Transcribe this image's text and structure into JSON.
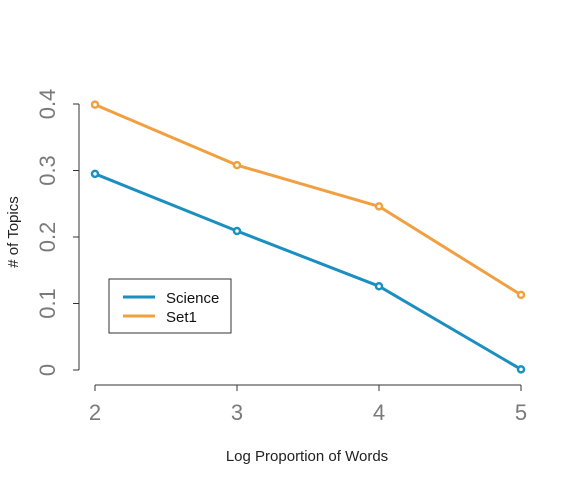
{
  "chart_data": {
    "type": "line",
    "title": "",
    "xlabel": "Log Proportion of Words",
    "ylabel": "# of Topics",
    "x": [
      2,
      3,
      4,
      5
    ],
    "xlim": [
      2,
      5
    ],
    "ylim": [
      0,
      0.4
    ],
    "x_ticks": [
      "2",
      "3",
      "4",
      "5"
    ],
    "y_ticks": [
      "0",
      "0.1",
      "0.2",
      "0.3",
      "0.4"
    ],
    "grid": false,
    "legend_position": "bottom-left",
    "series": [
      {
        "name": "Science",
        "values": [
          0.295,
          0.209,
          0.126,
          0.001
        ],
        "color": "#1a8fc0"
      },
      {
        "name": "Set1",
        "values": [
          0.399,
          0.308,
          0.246,
          0.113
        ],
        "color": "#f0a040"
      }
    ]
  }
}
